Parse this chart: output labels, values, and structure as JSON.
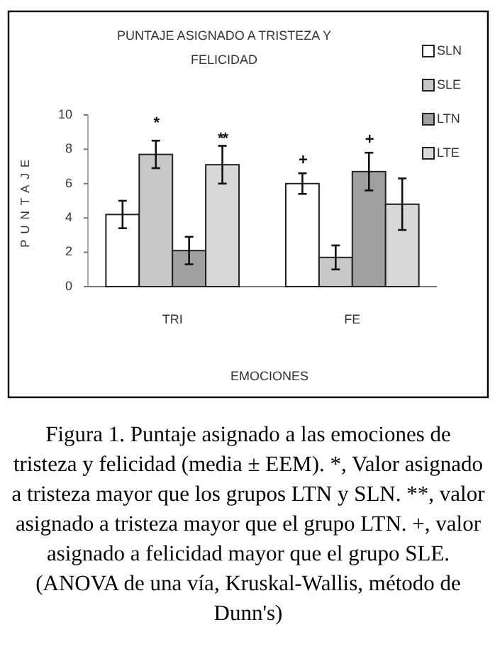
{
  "chart_data": {
    "type": "bar",
    "title": "PUNTAJE ASIGNADO A TRISTEZA Y FELICIDAD",
    "xlabel": "EMOCIONES",
    "ylabel": "PUNTAJE",
    "categories": [
      "TRI",
      "FE"
    ],
    "series": [
      {
        "name": "SLN",
        "color": "#ffffff",
        "values": [
          4.2,
          6.0
        ],
        "errors": [
          0.8,
          0.6
        ]
      },
      {
        "name": "SLE",
        "color": "#c8c8c8",
        "values": [
          7.7,
          1.7
        ],
        "errors": [
          0.8,
          0.7
        ]
      },
      {
        "name": "LTN",
        "color": "#a0a0a0",
        "values": [
          2.1,
          6.7
        ],
        "errors": [
          0.8,
          1.1
        ]
      },
      {
        "name": "LTE",
        "color": "#d8d8d8",
        "values": [
          7.1,
          4.8
        ],
        "errors": [
          1.1,
          1.5
        ]
      }
    ],
    "ylim": [
      0,
      10
    ],
    "yticks": [
      0,
      2,
      4,
      6,
      8,
      10
    ],
    "grid": false,
    "legend": "top right",
    "annotations": [
      "*",
      "**",
      "+",
      "+",
      "Figura 1. Puntaje asignado a las emociones de tristeza y felicidad (media ± EEM). *, Valor asignado a tristeza mayor que los grupos LTN y SLN. **, valor asignado a tristeza mayor que el grupo LTN. +, valor asignado a felicidad mayor que el grupo SLE. (ANOVA de una vía, Kruskal-Wallis, método de Dunn's)"
    ]
  }
}
